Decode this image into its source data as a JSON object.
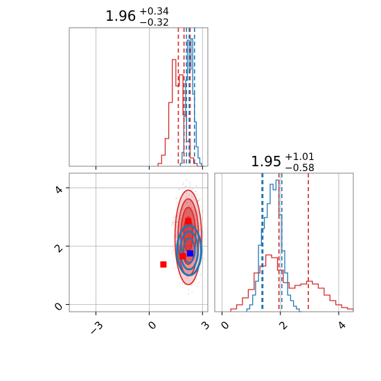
{
  "colors": {
    "red": "#d62728",
    "blue": "#1f77b4",
    "grid": "#b0b0b0",
    "square_blue": "#0000ff",
    "square_red": "#ff0000"
  },
  "chart_data": [
    {
      "type": "histogram",
      "panel": "top-left",
      "title": {
        "median": "1.96",
        "plus": "+0.34",
        "minus": "−0.32"
      },
      "xlim": [
        -4.5,
        3.3
      ],
      "xticks": [
        -3,
        0,
        3
      ],
      "grid": true,
      "series": [
        {
          "color": "red",
          "x": [
            0.6,
            0.8,
            1.0,
            1.2,
            1.4,
            1.6,
            1.8,
            2.0,
            2.2,
            2.4,
            2.6,
            2.8,
            3.0
          ],
          "y": [
            0.02,
            0.08,
            0.2,
            0.46,
            0.77,
            0.58,
            0.66,
            0.37,
            0.18,
            0.06,
            0.02,
            0.0,
            0.0
          ]
        },
        {
          "color": "blue",
          "x": [
            1.8,
            1.9,
            2.0,
            2.1,
            2.2,
            2.3,
            2.4,
            2.5,
            2.6,
            2.7,
            2.8,
            2.9,
            3.0
          ],
          "y": [
            0.02,
            0.1,
            0.36,
            0.62,
            0.91,
            0.7,
            0.92,
            0.52,
            0.32,
            0.14,
            0.06,
            0.02,
            0.0
          ]
        }
      ],
      "quantile_lines": [
        {
          "color": "red",
          "x": [
            1.64,
            1.96,
            2.3
          ]
        },
        {
          "color": "blue",
          "x": [
            2.1,
            2.25,
            2.55
          ]
        }
      ]
    },
    {
      "type": "contour",
      "panel": "bottom-left",
      "xlim": [
        -4.5,
        3.3
      ],
      "ylim": [
        -0.25,
        4.5
      ],
      "xticks": [
        -3,
        0,
        3
      ],
      "yticks": [
        0,
        2,
        4
      ],
      "xticklabels": [
        "−3",
        "0",
        "3"
      ],
      "yticklabels": [
        "0",
        "2",
        "4"
      ],
      "grid": true,
      "red_levels": [
        {
          "cx": 2.2,
          "cy": 2.3,
          "rx": 0.75,
          "ry": 1.62
        },
        {
          "cx": 2.2,
          "cy": 2.3,
          "rx": 0.58,
          "ry": 1.32
        },
        {
          "cx": 2.2,
          "cy": 2.35,
          "rx": 0.42,
          "ry": 0.98
        },
        {
          "cx": 2.2,
          "cy": 2.4,
          "rx": 0.25,
          "ry": 0.6
        }
      ],
      "blue_levels": [
        {
          "cx": 2.25,
          "cy": 1.85,
          "rx": 0.68,
          "ry": 0.85
        },
        {
          "cx": 2.25,
          "cy": 1.85,
          "rx": 0.5,
          "ry": 0.65
        },
        {
          "cx": 2.25,
          "cy": 1.85,
          "rx": 0.32,
          "ry": 0.42
        }
      ],
      "markers": [
        {
          "color": "square_red",
          "x": 2.2,
          "y": 2.85
        },
        {
          "color": "square_red",
          "x": 1.9,
          "y": 1.65
        },
        {
          "color": "square_red",
          "x": 0.8,
          "y": 1.37
        },
        {
          "color": "square_blue",
          "x": 2.3,
          "y": 1.75
        }
      ]
    },
    {
      "type": "histogram",
      "panel": "bottom-right",
      "title": {
        "median": "1.95",
        "plus": "+1.01",
        "minus": "−0.58"
      },
      "xlim": [
        -0.25,
        4.5
      ],
      "xticks": [
        0,
        2,
        4
      ],
      "xticklabels": [
        "0",
        "2",
        "4"
      ],
      "grid": true,
      "series": [
        {
          "color": "red",
          "x": [
            0.4,
            0.6,
            0.8,
            1.0,
            1.2,
            1.4,
            1.6,
            1.8,
            2.0,
            2.2,
            2.4,
            2.6,
            2.8,
            3.0,
            3.2,
            3.4,
            3.6,
            3.8,
            4.0,
            4.2,
            4.4
          ],
          "y": [
            0.02,
            0.05,
            0.1,
            0.16,
            0.28,
            0.33,
            0.41,
            0.39,
            0.3,
            0.21,
            0.17,
            0.19,
            0.2,
            0.22,
            0.2,
            0.17,
            0.12,
            0.08,
            0.05,
            0.03,
            0.02
          ]
        },
        {
          "color": "blue",
          "x": [
            0.9,
            1.0,
            1.1,
            1.2,
            1.3,
            1.4,
            1.5,
            1.6,
            1.7,
            1.8,
            1.9,
            2.0,
            2.1,
            2.2,
            2.3,
            2.4,
            2.5,
            2.6,
            2.7
          ],
          "y": [
            0.02,
            0.05,
            0.12,
            0.22,
            0.48,
            0.6,
            0.68,
            0.78,
            0.92,
            0.88,
            0.95,
            0.7,
            0.44,
            0.28,
            0.12,
            0.08,
            0.04,
            0.02,
            0.0
          ]
        }
      ],
      "quantile_lines": [
        {
          "color": "red",
          "x": [
            1.37,
            1.95,
            2.96
          ]
        },
        {
          "color": "blue",
          "x": [
            1.37,
            1.4,
            2.05
          ]
        }
      ]
    }
  ]
}
